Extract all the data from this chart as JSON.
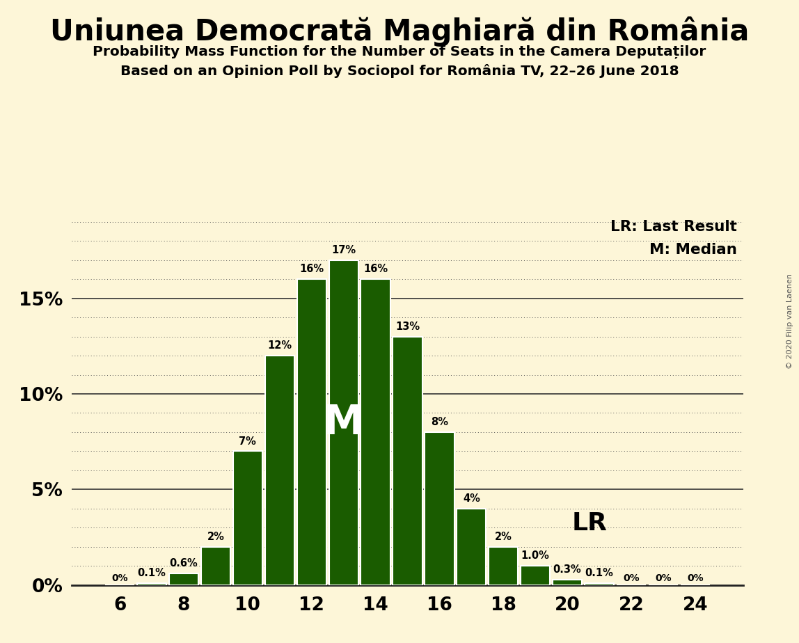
{
  "title": "Uniunea Democrată Maghiară din România",
  "subtitle1": "Probability Mass Function for the Number of Seats in the Camera Deputaților",
  "subtitle2": "Based on an Opinion Poll by Sociopol for România TV, 22–26 June 2018",
  "copyright": "© 2020 Filip van Laenen",
  "seats": [
    6,
    7,
    8,
    9,
    10,
    11,
    12,
    13,
    14,
    15,
    16,
    17,
    18,
    19,
    20,
    21,
    22,
    23,
    24
  ],
  "probabilities": [
    0.0,
    0.1,
    0.6,
    2.0,
    7.0,
    12.0,
    16.0,
    17.0,
    16.0,
    13.0,
    8.0,
    4.0,
    2.0,
    1.0,
    0.3,
    0.1,
    0.0,
    0.0,
    0.0
  ],
  "labels": [
    "0%",
    "0.1%",
    "0.6%",
    "2%",
    "7%",
    "12%",
    "16%",
    "17%",
    "16%",
    "13%",
    "8%",
    "4%",
    "2%",
    "1.0%",
    "0.3%",
    "0.1%",
    "0%",
    "0%",
    "0%"
  ],
  "bar_color": "#1a5c00",
  "background_color": "#fdf6d8",
  "median_seat": 13,
  "median_label": "M",
  "lr_label": "LR",
  "legend_lr": "LR: Last Result",
  "legend_m": "M: Median",
  "ytick_labels": [
    "0%",
    "5%",
    "10%",
    "15%"
  ],
  "ytick_values": [
    0,
    5,
    10,
    15
  ],
  "ylim": [
    0,
    19.5
  ],
  "xlabel_ticks": [
    6,
    8,
    10,
    12,
    14,
    16,
    18,
    20,
    22,
    24
  ],
  "xlim": [
    4.5,
    25.5
  ],
  "solid_ytick_values": [
    0,
    5,
    10,
    15
  ],
  "dotted_ytick_values": [
    1,
    2,
    3,
    4,
    6,
    7,
    8,
    9,
    11,
    12,
    13,
    14,
    16,
    17,
    18,
    19
  ]
}
